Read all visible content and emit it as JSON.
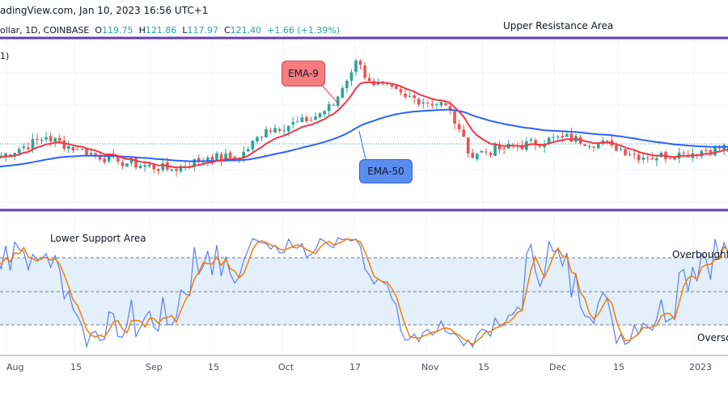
{
  "header": {
    "source": "adingView.com, Jan 10, 2023 16:56 UTC+1"
  },
  "symbol": {
    "name": "ollar, 1D, COINBASE",
    "o_label": "O",
    "open": "119.75",
    "h_label": "H",
    "high": "121.86",
    "l_label": "L",
    "low": "117.97",
    "c_label": "C",
    "close": "121.40",
    "change": "+1.66 (+1.39%)"
  },
  "pane_label": "1)",
  "annotations": {
    "upper": "Upper Resistance Area",
    "lower": "Lower Support Area",
    "overbought": "Overbought",
    "oversold": "Overso",
    "ema9": "EMA-9",
    "ema50": "EMA-50"
  },
  "colors": {
    "up": "#26a69a",
    "down": "#ef5350",
    "ema9": "#f23645",
    "ema50": "#2962ff",
    "k": "#5b7cfa",
    "d": "#f57c00",
    "purple": "#673ab7",
    "band": "#e3f0fb"
  },
  "chart_data": {
    "type": "candlestick",
    "keypoints": [
      {
        "date": "Jul 31",
        "close": 118
      },
      {
        "date": "Aug 11",
        "close": 124.25
      },
      {
        "date": "Aug 18",
        "close": 120.5
      },
      {
        "date": "Aug 27",
        "close": 116.75
      },
      {
        "date": "Sep 8",
        "close": 114.25
      },
      {
        "date": "Sep 16",
        "close": 118
      },
      {
        "date": "Sep 23",
        "close": 118
      },
      {
        "date": "Sep 29",
        "close": 126.75
      },
      {
        "date": "Oct 8",
        "close": 129.25
      },
      {
        "date": "Oct 14",
        "close": 134.25
      },
      {
        "date": "Oct 19",
        "close": 148
      },
      {
        "date": "Oct 22",
        "close": 141.75
      },
      {
        "date": "Oct 30",
        "close": 136.75
      },
      {
        "date": "Nov 8",
        "close": 134.25
      },
      {
        "date": "Nov 11",
        "close": 126.75
      },
      {
        "date": "Nov 13",
        "close": 119.25
      },
      {
        "date": "Nov 20",
        "close": 120.5
      },
      {
        "date": "Dec 4",
        "close": 124.25
      },
      {
        "date": "Dec 15",
        "close": 121.75
      },
      {
        "date": "Dec 22",
        "close": 118
      },
      {
        "date": "Dec 31",
        "close": 119.25
      },
      {
        "date": "Jan 10",
        "close": 121.4
      }
    ],
    "series": [
      {
        "name": "EMA-9",
        "period": 9
      },
      {
        "name": "EMA-50",
        "period": 50
      }
    ],
    "oscillator": {
      "overbought": 80,
      "oversold": 20,
      "mid": 50,
      "range": [
        0,
        100
      ]
    },
    "x_ticks": [
      "Aug",
      "15",
      "Sep",
      "15",
      "Oct",
      "17",
      "Nov",
      "15",
      "Dec",
      "15",
      "2023"
    ]
  }
}
